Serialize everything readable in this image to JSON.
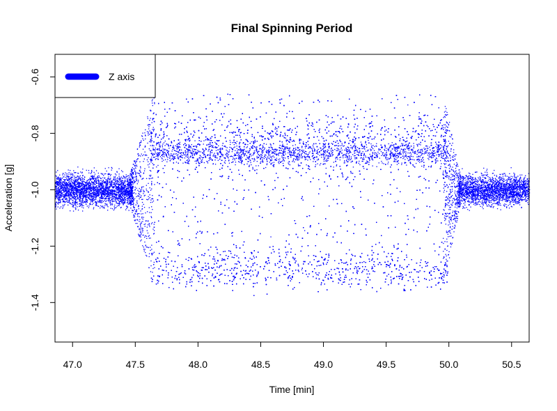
{
  "chart_data": {
    "type": "scatter",
    "title": "Final Spinning Period",
    "xlabel": "Time [min]",
    "ylabel": "Acceleration [g]",
    "xlim": [
      46.86,
      50.64
    ],
    "ylim": [
      -1.54,
      -0.52
    ],
    "x_ticks": [
      47.0,
      47.5,
      48.0,
      48.5,
      49.0,
      49.5,
      50.0,
      50.5
    ],
    "x_tick_labels": [
      "47.0",
      "47.5",
      "48.0",
      "48.5",
      "49.0",
      "49.5",
      "50.0",
      "50.5"
    ],
    "y_ticks": [
      -0.6,
      -0.8,
      -1.0,
      -1.2,
      -1.4
    ],
    "y_tick_labels": [
      "-0.6",
      "-0.8",
      "-1.0",
      "-1.2",
      "-1.4"
    ],
    "grid": false,
    "legend_position": "top-left",
    "series": [
      {
        "name": "Z axis",
        "color": "#0000ff",
        "description_points": {
          "resting_before": {
            "x_range": [
              46.86,
              47.5
            ],
            "y_center": -1.0,
            "y_spread": 0.07
          },
          "spinning": {
            "x_range": [
              47.62,
              50.0
            ],
            "y_upper_band": [
              -0.65,
              -0.95
            ],
            "y_lower_band": [
              -1.25,
              -1.35
            ],
            "y_min": -1.42
          },
          "resting_after": {
            "x_range": [
              50.05,
              50.64
            ],
            "y_center": -1.0,
            "y_spread": 0.06
          }
        }
      }
    ]
  }
}
